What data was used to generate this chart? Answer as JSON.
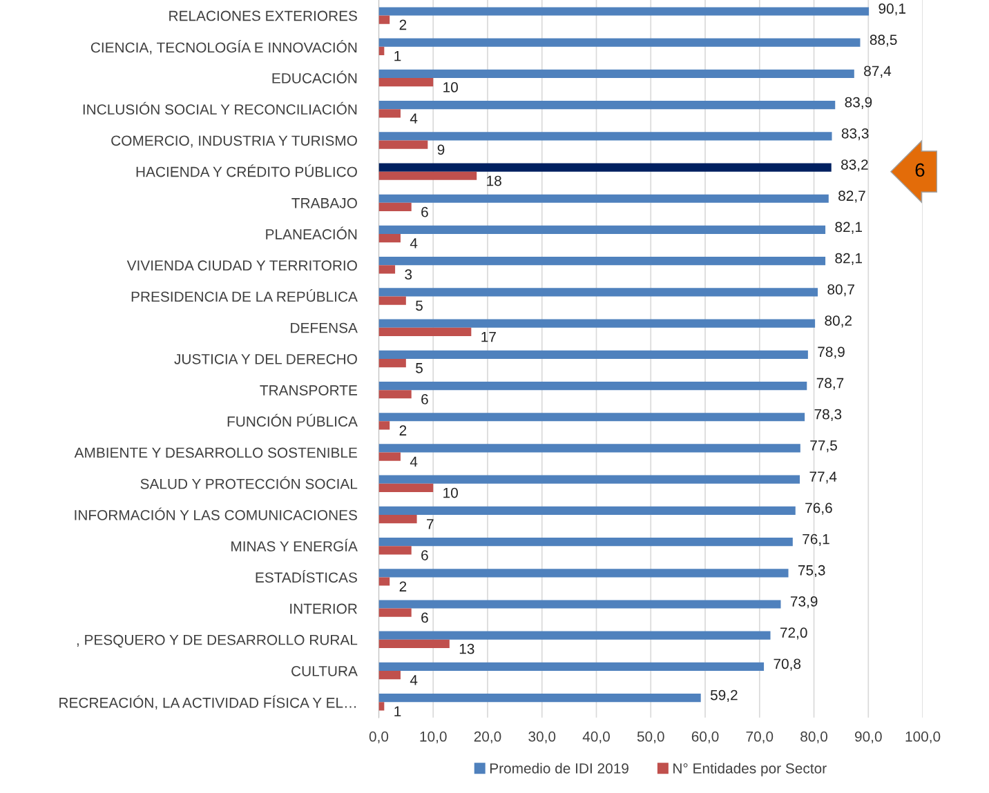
{
  "chart_data": {
    "type": "bar",
    "orientation": "horizontal",
    "categories": [
      "RELACIONES EXTERIORES",
      "CIENCIA, TECNOLOGÍA E INNOVACIÓN",
      "EDUCACIÓN",
      "INCLUSIÓN SOCIAL Y RECONCILIACIÓN",
      "COMERCIO, INDUSTRIA Y TURISMO",
      "HACIENDA Y CRÉDITO PÚBLICO",
      "TRABAJO",
      "PLANEACIÓN",
      "VIVIENDA CIUDAD Y TERRITORIO",
      "PRESIDENCIA DE LA REPÚBLICA",
      "DEFENSA",
      "JUSTICIA Y DEL DERECHO",
      "TRANSPORTE",
      "FUNCIÓN PÚBLICA",
      "AMBIENTE Y DESARROLLO SOSTENIBLE",
      "SALUD Y PROTECCIÓN SOCIAL",
      "INFORMACIÓN Y LAS COMUNICACIONES",
      "MINAS Y ENERGÍA",
      "ESTADÍSTICAS",
      "INTERIOR",
      ", PESQUERO Y DE DESARROLLO RURAL",
      "CULTURA",
      "RECREACIÓN, LA ACTIVIDAD FÍSICA Y EL…"
    ],
    "series": [
      {
        "name": "Promedio de IDI 2019",
        "color": "#4f81bd",
        "colors": [
          "#4f81bd",
          "#4f81bd",
          "#4f81bd",
          "#4f81bd",
          "#4f81bd",
          "#002060",
          "#4f81bd",
          "#4f81bd",
          "#4f81bd",
          "#4f81bd",
          "#4f81bd",
          "#4f81bd",
          "#4f81bd",
          "#4f81bd",
          "#4f81bd",
          "#4f81bd",
          "#4f81bd",
          "#4f81bd",
          "#4f81bd",
          "#4f81bd",
          "#4f81bd",
          "#4f81bd",
          "#4f81bd"
        ],
        "values": [
          90.1,
          88.5,
          87.4,
          83.9,
          83.3,
          83.2,
          82.7,
          82.1,
          82.1,
          80.7,
          80.2,
          78.9,
          78.7,
          78.3,
          77.5,
          77.4,
          76.6,
          76.1,
          75.3,
          73.9,
          72.0,
          70.8,
          59.2
        ],
        "value_labels": [
          "90,1",
          "88,5",
          "87,4",
          "83,9",
          "83,3",
          "83,2",
          "82,7",
          "82,1",
          "82,1",
          "80,7",
          "80,2",
          "78,9",
          "78,7",
          "78,3",
          "77,5",
          "77,4",
          "76,6",
          "76,1",
          "75,3",
          "73,9",
          "72,0",
          "70,8",
          "59,2"
        ]
      },
      {
        "name": "N° Entidades por Sector",
        "color": "#c0504d",
        "values": [
          2,
          1,
          10,
          4,
          9,
          18,
          6,
          4,
          3,
          5,
          17,
          5,
          6,
          2,
          4,
          10,
          7,
          6,
          2,
          6,
          13,
          4,
          1
        ],
        "value_labels": [
          "2",
          "1",
          "10",
          "4",
          "9",
          "18",
          "6",
          "4",
          "3",
          "5",
          "17",
          "5",
          "6",
          "2",
          "4",
          "10",
          "7",
          "6",
          "2",
          "6",
          "13",
          "4",
          "1"
        ]
      }
    ],
    "xlim": [
      0,
      100
    ],
    "xticks": [
      {
        "value": 0,
        "label": "0,0"
      },
      {
        "value": 10,
        "label": "10,0"
      },
      {
        "value": 20,
        "label": "20,0"
      },
      {
        "value": 30,
        "label": "30,0"
      },
      {
        "value": 40,
        "label": "40,0"
      },
      {
        "value": 50,
        "label": "50,0"
      },
      {
        "value": 60,
        "label": "60,0"
      },
      {
        "value": 70,
        "label": "70,0"
      },
      {
        "value": 80,
        "label": "80,0"
      },
      {
        "value": 90,
        "label": "90,0"
      },
      {
        "value": 100,
        "label": "100,0"
      }
    ],
    "grid": "x",
    "legend": "bottom",
    "annotations": [
      "6"
    ]
  }
}
